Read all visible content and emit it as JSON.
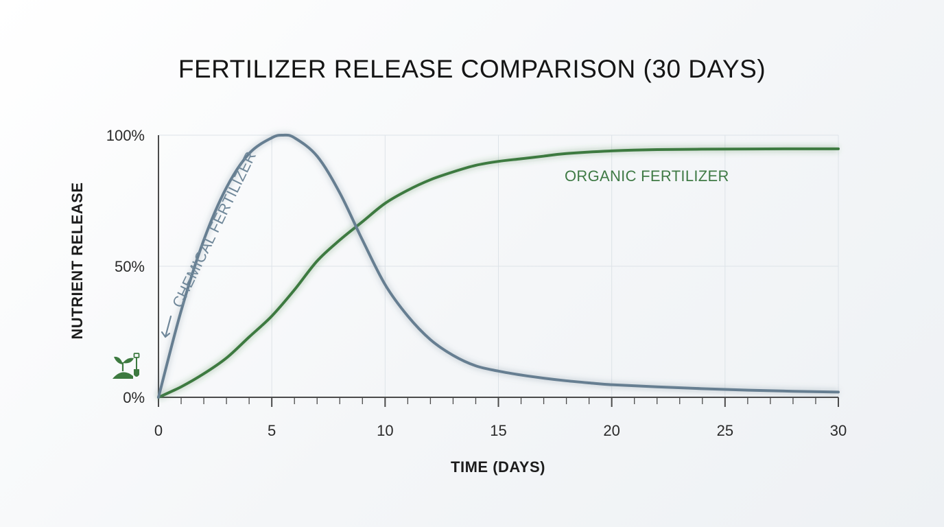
{
  "chart_data": {
    "type": "line",
    "title": "FERTILIZER RELEASE COMPARISON (30 DAYS)",
    "xlabel": "TIME (DAYS)",
    "ylabel": "NUTRIENT RELEASE",
    "xlim": [
      0,
      30
    ],
    "ylim": [
      0,
      100
    ],
    "x_ticks": [
      0,
      5,
      10,
      15,
      20,
      25,
      30
    ],
    "x_tick_labels": [
      "0",
      "5",
      "10",
      "15",
      "20",
      "25",
      "30"
    ],
    "y_ticks": [
      0,
      50,
      100
    ],
    "y_tick_labels": [
      "0%",
      "50%",
      "100%"
    ],
    "x_minor_tick_step": 1,
    "grid": true,
    "series": [
      {
        "name": "CHEMICAL FERTILIZER",
        "color": "#667e91",
        "label_color": "#6f8799",
        "x": [
          0,
          1,
          2,
          3,
          4,
          5,
          5.5,
          6,
          7,
          8,
          9,
          10,
          11,
          12,
          13,
          14,
          15,
          16,
          17,
          18,
          19,
          20,
          22,
          25,
          28,
          30
        ],
        "y": [
          0,
          33,
          60,
          80,
          93,
          99,
          100,
          99,
          92,
          78,
          60,
          43,
          31,
          22,
          16,
          12,
          10,
          8.5,
          7.3,
          6.3,
          5.5,
          4.8,
          4,
          3,
          2.3,
          2
        ]
      },
      {
        "name": "ORGANIC FERTILIZER",
        "color": "#3d7a40",
        "label_color": "#3f7a45",
        "x": [
          0,
          1,
          2,
          3,
          4,
          5,
          6,
          7,
          8,
          9,
          10,
          11,
          12,
          13,
          14,
          15,
          16,
          17,
          18,
          20,
          22,
          25,
          28,
          30
        ],
        "y": [
          0,
          4,
          9,
          15,
          23,
          31,
          41,
          52,
          60,
          67,
          74,
          79,
          83,
          86,
          88.5,
          90,
          91,
          92,
          93,
          94,
          94.5,
          94.7,
          94.8,
          94.8
        ]
      }
    ]
  },
  "icons": {
    "plant": "sprout-with-shovel-icon",
    "arrow": "down-arrow-icon"
  }
}
